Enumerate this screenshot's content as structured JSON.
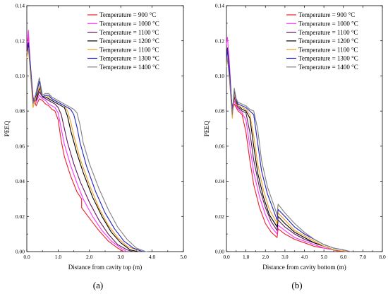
{
  "chart_data": [
    {
      "type": "line",
      "caption": "(a)",
      "xlabel": "Distance from cavity top (m)",
      "ylabel": "PEEQ",
      "xlim": [
        0,
        5
      ],
      "ylim": [
        0,
        0.14
      ],
      "xticks": [
        "0.0",
        "1.0",
        "2.0",
        "3.0",
        "4.0",
        "5.0"
      ],
      "yticks": [
        "0.00",
        "0.02",
        "0.04",
        "0.06",
        "0.08",
        "0.10",
        "0.12",
        "0.14"
      ],
      "legend_position": "top-right",
      "series": [
        {
          "name": "Temperature = 900 °C",
          "color": "#e8202a",
          "x": [
            0,
            0.05,
            0.1,
            0.2,
            0.3,
            0.4,
            0.5,
            0.6,
            0.7,
            0.8,
            0.9,
            1.0,
            1.1,
            1.2,
            1.4,
            1.6,
            1.75,
            1.75,
            2.0,
            2.3,
            2.6,
            2.9,
            3.1
          ],
          "y": [
            0.117,
            0.124,
            0.108,
            0.088,
            0.083,
            0.087,
            0.086,
            0.084,
            0.083,
            0.081,
            0.08,
            0.075,
            0.063,
            0.054,
            0.043,
            0.034,
            0.03,
            0.025,
            0.019,
            0.012,
            0.006,
            0.002,
            0.0
          ]
        },
        {
          "name": "Temperature = 1000 °C",
          "color": "#ff33ff",
          "x": [
            0,
            0.05,
            0.1,
            0.2,
            0.3,
            0.4,
            0.5,
            0.6,
            0.7,
            0.8,
            0.9,
            1.0,
            1.1,
            1.2,
            1.4,
            1.6,
            1.8,
            2.1,
            2.4,
            2.7,
            3.0,
            3.2
          ],
          "y": [
            0.113,
            0.126,
            0.11,
            0.087,
            0.085,
            0.089,
            0.087,
            0.086,
            0.084,
            0.083,
            0.082,
            0.079,
            0.07,
            0.061,
            0.049,
            0.039,
            0.03,
            0.02,
            0.012,
            0.006,
            0.002,
            0.0
          ]
        },
        {
          "name": "Temperature = 1100 °C",
          "color": "#5a1a5a",
          "x": [
            0,
            0.05,
            0.1,
            0.2,
            0.3,
            0.4,
            0.5,
            0.6,
            0.7,
            0.8,
            0.9,
            1.0,
            1.1,
            1.2,
            1.3,
            1.5,
            1.7,
            2.0,
            2.3,
            2.6,
            2.9,
            3.2,
            3.4
          ],
          "y": [
            0.112,
            0.118,
            0.109,
            0.086,
            0.086,
            0.091,
            0.088,
            0.087,
            0.086,
            0.085,
            0.084,
            0.082,
            0.078,
            0.07,
            0.062,
            0.05,
            0.04,
            0.028,
            0.018,
            0.01,
            0.004,
            0.001,
            0.0
          ]
        },
        {
          "name": "Temperature = 1200 °C",
          "color": "#000000",
          "x": [
            0,
            0.05,
            0.1,
            0.2,
            0.3,
            0.4,
            0.5,
            0.6,
            0.7,
            0.8,
            0.9,
            1.0,
            1.2,
            1.3,
            1.4,
            1.6,
            1.8,
            2.1,
            2.4,
            2.7,
            3.0,
            3.3,
            3.55
          ],
          "y": [
            0.114,
            0.118,
            0.108,
            0.085,
            0.087,
            0.093,
            0.088,
            0.088,
            0.087,
            0.086,
            0.085,
            0.084,
            0.082,
            0.077,
            0.069,
            0.056,
            0.045,
            0.031,
            0.02,
            0.011,
            0.005,
            0.001,
            0.0
          ]
        },
        {
          "name": "Temperature = 1100 °C",
          "color": "#f0a020",
          "x": [
            0,
            0.05,
            0.1,
            0.2,
            0.3,
            0.4,
            0.5,
            0.6,
            0.7,
            0.8,
            0.9,
            1.0,
            1.2,
            1.3,
            1.4,
            1.5,
            1.7,
            2.0,
            2.3,
            2.6,
            2.9,
            3.2,
            3.5,
            3.7
          ],
          "y": [
            0.11,
            0.116,
            0.105,
            0.082,
            0.088,
            0.094,
            0.088,
            0.089,
            0.088,
            0.087,
            0.086,
            0.085,
            0.083,
            0.08,
            0.074,
            0.066,
            0.053,
            0.038,
            0.025,
            0.015,
            0.008,
            0.003,
            0.001,
            0.0
          ]
        },
        {
          "name": "Temperature = 1300 °C",
          "color": "#2020c0",
          "x": [
            0,
            0.05,
            0.1,
            0.2,
            0.3,
            0.4,
            0.5,
            0.6,
            0.7,
            0.8,
            0.9,
            1.0,
            1.2,
            1.4,
            1.5,
            1.6,
            1.7,
            1.9,
            2.2,
            2.5,
            2.8,
            3.1,
            3.4,
            3.7,
            3.8
          ],
          "y": [
            0.117,
            0.119,
            0.109,
            0.085,
            0.089,
            0.097,
            0.088,
            0.089,
            0.089,
            0.087,
            0.086,
            0.085,
            0.083,
            0.081,
            0.078,
            0.071,
            0.062,
            0.049,
            0.034,
            0.022,
            0.013,
            0.006,
            0.002,
            0.0,
            0.0
          ]
        },
        {
          "name": "Temperature = 1400 °C",
          "color": "#808080",
          "x": [
            0,
            0.05,
            0.1,
            0.2,
            0.3,
            0.4,
            0.5,
            0.6,
            0.7,
            0.8,
            0.9,
            1.0,
            1.2,
            1.4,
            1.5,
            1.6,
            1.7,
            1.8,
            2.0,
            2.3,
            2.6,
            2.9,
            3.2,
            3.5,
            3.8,
            3.85
          ],
          "y": [
            0.113,
            0.116,
            0.106,
            0.084,
            0.091,
            0.099,
            0.089,
            0.09,
            0.09,
            0.088,
            0.087,
            0.086,
            0.084,
            0.082,
            0.081,
            0.079,
            0.072,
            0.062,
            0.05,
            0.036,
            0.024,
            0.014,
            0.007,
            0.002,
            0.0,
            0.0
          ]
        }
      ]
    },
    {
      "type": "line",
      "caption": "(b)",
      "xlabel": "Distance from cavity bottom (m)",
      "ylabel": "PEEQ",
      "xlim": [
        0,
        8
      ],
      "ylim": [
        0,
        0.14
      ],
      "xticks": [
        "0.0",
        "1.0",
        "2.0",
        "3.0",
        "4.0",
        "5.0",
        "6.0",
        "7.0",
        "8.0"
      ],
      "yticks": [
        "0.00",
        "0.02",
        "0.04",
        "0.06",
        "0.08",
        "0.10",
        "0.12",
        "0.14"
      ],
      "legend_position": "top-right",
      "series": [
        {
          "name": "Temperature = 900 °C",
          "color": "#e8202a",
          "x": [
            0,
            0.05,
            0.15,
            0.3,
            0.4,
            0.5,
            0.6,
            0.8,
            1.0,
            1.2,
            1.4,
            1.7,
            2.0,
            2.3,
            2.6,
            2.65,
            3.0,
            3.5,
            4.0,
            4.5,
            5.0,
            5.5,
            5.8
          ],
          "y": [
            0.11,
            0.115,
            0.102,
            0.08,
            0.084,
            0.082,
            0.08,
            0.078,
            0.068,
            0.052,
            0.038,
            0.025,
            0.016,
            0.011,
            0.008,
            0.013,
            0.01,
            0.007,
            0.005,
            0.003,
            0.002,
            0.001,
            0.0
          ]
        },
        {
          "name": "Temperature = 1000 °C",
          "color": "#ff33ff",
          "x": [
            0,
            0.05,
            0.15,
            0.3,
            0.4,
            0.5,
            0.6,
            0.8,
            1.0,
            1.2,
            1.4,
            1.7,
            2.0,
            2.3,
            2.6,
            2.65,
            3.0,
            3.5,
            4.0,
            4.5,
            5.0,
            5.5,
            5.9
          ],
          "y": [
            0.118,
            0.122,
            0.108,
            0.078,
            0.086,
            0.083,
            0.081,
            0.079,
            0.075,
            0.06,
            0.045,
            0.031,
            0.021,
            0.014,
            0.01,
            0.015,
            0.012,
            0.008,
            0.006,
            0.004,
            0.002,
            0.001,
            0.0
          ]
        },
        {
          "name": "Temperature = 1100 °C",
          "color": "#5a1a5a",
          "x": [
            0,
            0.05,
            0.15,
            0.3,
            0.4,
            0.5,
            0.6,
            0.8,
            1.0,
            1.2,
            1.4,
            1.7,
            2.0,
            2.3,
            2.6,
            2.65,
            3.0,
            3.5,
            4.0,
            4.5,
            5.0,
            5.5,
            6.0
          ],
          "y": [
            0.112,
            0.116,
            0.104,
            0.079,
            0.088,
            0.084,
            0.082,
            0.08,
            0.079,
            0.068,
            0.052,
            0.036,
            0.025,
            0.017,
            0.012,
            0.018,
            0.014,
            0.01,
            0.007,
            0.005,
            0.003,
            0.001,
            0.0
          ]
        },
        {
          "name": "Temperature = 1200 °C",
          "color": "#000000",
          "x": [
            0,
            0.05,
            0.15,
            0.3,
            0.4,
            0.5,
            0.6,
            0.8,
            1.0,
            1.2,
            1.4,
            1.6,
            1.9,
            2.2,
            2.6,
            2.65,
            3.0,
            3.5,
            4.0,
            4.5,
            5.0,
            5.5,
            6.1
          ],
          "y": [
            0.108,
            0.114,
            0.101,
            0.08,
            0.09,
            0.085,
            0.083,
            0.081,
            0.08,
            0.076,
            0.06,
            0.045,
            0.031,
            0.021,
            0.014,
            0.02,
            0.016,
            0.011,
            0.008,
            0.005,
            0.003,
            0.001,
            0.0
          ]
        },
        {
          "name": "Temperature = 1100 °C",
          "color": "#f0a020",
          "x": [
            0,
            0.05,
            0.15,
            0.3,
            0.4,
            0.5,
            0.6,
            0.8,
            1.0,
            1.2,
            1.4,
            1.6,
            1.9,
            2.2,
            2.6,
            2.65,
            3.0,
            3.5,
            4.0,
            4.5,
            5.0,
            5.5,
            6.2
          ],
          "y": [
            0.106,
            0.112,
            0.099,
            0.076,
            0.091,
            0.084,
            0.083,
            0.082,
            0.081,
            0.078,
            0.066,
            0.05,
            0.035,
            0.024,
            0.016,
            0.022,
            0.018,
            0.012,
            0.009,
            0.006,
            0.003,
            0.001,
            0.0
          ]
        },
        {
          "name": "Temperature = 1300 °C",
          "color": "#2020c0",
          "x": [
            0,
            0.05,
            0.15,
            0.3,
            0.4,
            0.5,
            0.6,
            0.8,
            1.0,
            1.2,
            1.4,
            1.6,
            1.8,
            2.1,
            2.6,
            2.65,
            3.0,
            3.5,
            4.0,
            4.5,
            5.0,
            5.5,
            6.0,
            6.3
          ],
          "y": [
            0.11,
            0.115,
            0.103,
            0.08,
            0.092,
            0.086,
            0.084,
            0.083,
            0.082,
            0.08,
            0.078,
            0.062,
            0.046,
            0.033,
            0.018,
            0.024,
            0.02,
            0.014,
            0.01,
            0.007,
            0.004,
            0.002,
            0.001,
            0.0
          ]
        },
        {
          "name": "Temperature = 1400 °C",
          "color": "#808080",
          "x": [
            0,
            0.05,
            0.15,
            0.3,
            0.4,
            0.5,
            0.6,
            0.8,
            1.0,
            1.2,
            1.4,
            1.6,
            1.8,
            2.1,
            2.6,
            2.65,
            3.0,
            3.5,
            4.0,
            4.5,
            5.0,
            5.5,
            6.0,
            6.4
          ],
          "y": [
            0.105,
            0.11,
            0.099,
            0.078,
            0.093,
            0.087,
            0.085,
            0.084,
            0.083,
            0.081,
            0.08,
            0.07,
            0.052,
            0.037,
            0.021,
            0.027,
            0.022,
            0.016,
            0.011,
            0.007,
            0.004,
            0.002,
            0.001,
            0.0
          ]
        }
      ]
    }
  ]
}
